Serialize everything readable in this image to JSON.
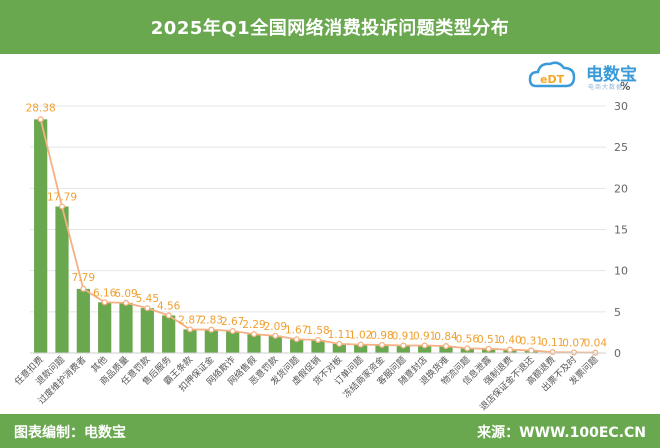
{
  "header": {
    "title": "2025年Q1全国网络消费投诉问题类型分布"
  },
  "footer": {
    "left": "图表编制：电数宝",
    "right": "来源：WWW.100EC.CN"
  },
  "logo": {
    "name": "电数宝",
    "subtitle": "电商大数据库"
  },
  "colors": {
    "bar": "#6aa84f",
    "line": "#f4b183",
    "label": "#f0a030",
    "header": "#6aa84f",
    "text": "#666666"
  },
  "chart_data": {
    "type": "bar",
    "title": "",
    "xlabel": "",
    "ylabel": "%",
    "ylim": [
      0,
      30
    ],
    "yticks": [
      0,
      5,
      10,
      15,
      20,
      25,
      30
    ],
    "grid": true,
    "overlay": "line",
    "categories": [
      "任意扣费",
      "退款问题",
      "过度维护消费者",
      "其他",
      "商品质量",
      "任意罚款",
      "售后服务",
      "霸王条款",
      "扣押保证金",
      "网络欺诈",
      "网络售假",
      "恶意罚款",
      "发货问题",
      "虚假促销",
      "货不对板",
      "订单问题",
      "冻结商家资金",
      "客服问题",
      "随意封店",
      "退换货难",
      "物流问题",
      "信息泄露",
      "强制退费",
      "退店保证金不退还",
      "高额退费",
      "出票不及时",
      "发票问题"
    ],
    "values": [
      28.38,
      17.79,
      7.79,
      6.16,
      6.09,
      5.45,
      4.56,
      2.87,
      2.83,
      2.67,
      2.29,
      2.09,
      1.67,
      1.58,
      1.11,
      1.02,
      0.98,
      0.91,
      0.91,
      0.84,
      0.56,
      0.51,
      0.4,
      0.31,
      0.11,
      0.07,
      0.04
    ],
    "value_labels": [
      "28.38",
      "17.79",
      "7.79",
      "6.16",
      "6.09",
      "5.45",
      "4.56",
      "2.87",
      "2.83",
      "2.67",
      "2.29",
      "2.09",
      "1.67",
      "1.58",
      "1.11",
      "1.02",
      "0.98",
      "0.91",
      "0.91",
      "0.84",
      "0.56",
      "0.51",
      "0.40",
      "0.31",
      "0.11",
      "0.07",
      "0.04"
    ]
  }
}
